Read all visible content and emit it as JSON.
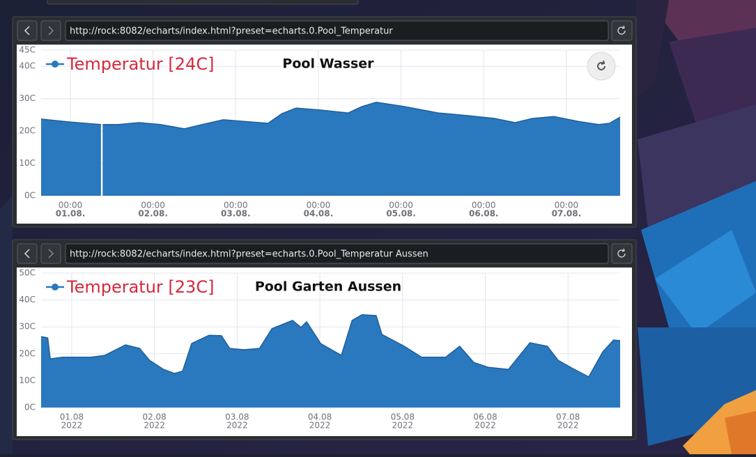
{
  "windows": [
    {
      "url": "http://rock:8082/echarts/index.html?preset=echarts.0.Pool_Temperatur"
    },
    {
      "url": "http://rock:8082/echarts/index.html?preset=echarts.0.Pool_Temperatur Aussen"
    }
  ],
  "chart_data": [
    {
      "type": "area",
      "title": "Pool Wasser",
      "x": [
        0.646,
        0.99,
        1.37,
        1.38,
        1.39,
        1.58,
        1.83,
        2.09,
        2.38,
        2.59,
        2.85,
        3.1,
        3.39,
        3.56,
        3.73,
        4.02,
        4.36,
        4.53,
        4.7,
        5.03,
        5.45,
        5.79,
        6.13,
        6.38,
        6.59,
        6.85,
        7.14,
        7.39,
        7.52,
        7.65
      ],
      "series": [
        {
          "name": "Temperatur [24C]",
          "color": "#2a78bd",
          "values": [
            23.7,
            22.8,
            22.0,
            null,
            22.0,
            22.0,
            22.6,
            22.0,
            20.7,
            22.0,
            23.5,
            23.0,
            22.4,
            25.4,
            27.1,
            26.5,
            25.6,
            27.6,
            28.9,
            27.6,
            25.6,
            24.8,
            23.9,
            22.6,
            23.9,
            24.5,
            23.0,
            22.0,
            22.4,
            24.3
          ]
        }
      ],
      "xlim": [
        0.646,
        7.65
      ],
      "xticks": [
        {
          "value": 1,
          "label": [
            "00:00",
            "01.08."
          ]
        },
        {
          "value": 2,
          "label": [
            "00:00",
            "02.08."
          ]
        },
        {
          "value": 3,
          "label": [
            "00:00",
            "03.08."
          ]
        },
        {
          "value": 4,
          "label": [
            "00:00",
            "04.08."
          ]
        },
        {
          "value": 5,
          "label": [
            "00:00",
            "05.08."
          ]
        },
        {
          "value": 6,
          "label": [
            "00:00",
            "06.08."
          ]
        },
        {
          "value": 7,
          "label": [
            "00:00",
            "07.08."
          ]
        }
      ],
      "ylim": [
        0,
        45
      ],
      "yticks": [
        {
          "value": 0,
          "label": "0C"
        },
        {
          "value": 10,
          "label": "10C"
        },
        {
          "value": 20,
          "label": "20C"
        },
        {
          "value": 30,
          "label": "30C"
        },
        {
          "value": 40,
          "label": "40C"
        },
        {
          "value": 45,
          "label": "45C"
        }
      ],
      "grid": true,
      "legend": "top-left"
    },
    {
      "type": "area",
      "title": "Pool Garten Aussen",
      "x": [
        0.63,
        0.71,
        0.74,
        0.89,
        1.23,
        1.4,
        1.65,
        1.82,
        1.94,
        2.11,
        2.24,
        2.34,
        2.45,
        2.66,
        2.81,
        2.91,
        3.08,
        3.27,
        3.42,
        3.67,
        3.77,
        3.84,
        4.01,
        4.26,
        4.39,
        4.51,
        4.68,
        4.75,
        5.02,
        5.23,
        5.52,
        5.69,
        5.86,
        6.03,
        6.28,
        6.54,
        6.75,
        6.88,
        7.04,
        7.25,
        7.42,
        7.55,
        7.63
      ],
      "series": [
        {
          "name": "Temperatur [23C]",
          "color": "#2a78bd",
          "values": [
            26.4,
            25.9,
            18.1,
            18.7,
            18.7,
            19.4,
            23.3,
            22.0,
            17.6,
            14.2,
            12.7,
            13.5,
            23.8,
            26.9,
            26.7,
            22.0,
            21.5,
            22.0,
            29.3,
            32.4,
            29.8,
            31.9,
            23.8,
            19.4,
            32.4,
            34.5,
            34.2,
            27.2,
            22.8,
            18.7,
            18.7,
            22.8,
            16.8,
            15.0,
            14.2,
            24.1,
            22.8,
            17.6,
            14.8,
            11.4,
            20.7,
            25.1,
            24.9
          ]
        }
      ],
      "xlim": [
        0.63,
        7.63
      ],
      "xticks": [
        {
          "value": 1,
          "label": [
            "01.08",
            "2022"
          ]
        },
        {
          "value": 2,
          "label": [
            "02.08",
            "2022"
          ]
        },
        {
          "value": 3,
          "label": [
            "03.08",
            "2022"
          ]
        },
        {
          "value": 4,
          "label": [
            "04.08",
            "2022"
          ]
        },
        {
          "value": 5,
          "label": [
            "05.08",
            "2022"
          ]
        },
        {
          "value": 6,
          "label": [
            "06.08",
            "2022"
          ]
        },
        {
          "value": 7,
          "label": [
            "07.08",
            "2022"
          ]
        }
      ],
      "ylim": [
        0,
        50
      ],
      "yticks": [
        {
          "value": 0,
          "label": "0C"
        },
        {
          "value": 10,
          "label": "10C"
        },
        {
          "value": 20,
          "label": "20C"
        },
        {
          "value": 30,
          "label": "30C"
        },
        {
          "value": 40,
          "label": "40C"
        },
        {
          "value": 50,
          "label": "50C"
        }
      ],
      "grid": true,
      "legend": "top-left"
    }
  ]
}
